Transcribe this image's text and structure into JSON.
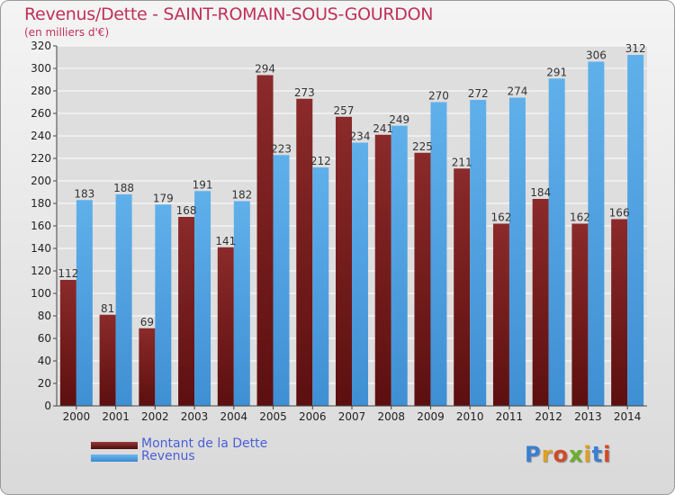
{
  "header": {
    "title": "Revenus/Dette - SAINT-ROMAIN-SOUS-GOURDON",
    "subtitle": "(en milliers d'€)"
  },
  "legend": {
    "items": [
      {
        "label": "Montant de la Dette",
        "color": "#7a1e1e"
      },
      {
        "label": "Revenus",
        "color": "#4a9de0"
      }
    ]
  },
  "logo": {
    "text": "Proxiti"
  },
  "colors": {
    "debt_top": "#8b2a2a",
    "debt_bottom": "#5c0f0f",
    "revenue_top": "#5fb0ea",
    "revenue_bottom": "#3f8fd4",
    "grid": "#ffffff",
    "axis_text": "#222222",
    "title": "#c0305a",
    "legend_text": "#4a5fd6"
  },
  "chart_data": {
    "type": "bar",
    "title": "Revenus/Dette - SAINT-ROMAIN-SOUS-GOURDON",
    "ylabel": "",
    "xlabel": "",
    "ylim": [
      0,
      320
    ],
    "ytick_step": 20,
    "grid": true,
    "legend_position": "bottom-left",
    "categories": [
      "2000",
      "2001",
      "2002",
      "2003",
      "2004",
      "2005",
      "2006",
      "2007",
      "2008",
      "2009",
      "2010",
      "2011",
      "2012",
      "2013",
      "2014"
    ],
    "series": [
      {
        "name": "Montant de la Dette",
        "values": [
          112,
          81,
          69,
          168,
          141,
          294,
          273,
          257,
          241,
          225,
          211,
          162,
          184,
          162,
          166
        ]
      },
      {
        "name": "Revenus",
        "values": [
          183,
          188,
          179,
          191,
          182,
          223,
          212,
          234,
          249,
          270,
          272,
          274,
          291,
          306,
          312
        ]
      }
    ]
  }
}
